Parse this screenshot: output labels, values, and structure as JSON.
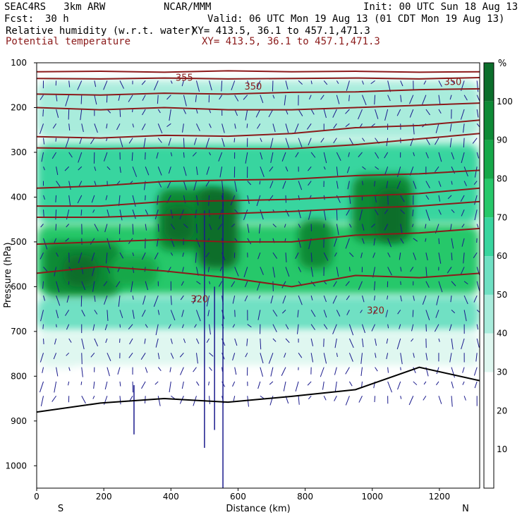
{
  "header": {
    "model": "SEAC4RS   3km ARW",
    "center": "NCAR/MMM",
    "init": "Init: 00 UTC Sun 18 Aug 13",
    "fcst_label": "Fcst:",
    "fcst_value": "30 h",
    "valid": "Valid: 06 UTC Mon 19 Aug 13 (01 CDT Mon 19 Aug 13)",
    "field1": "Relative humidity (w.r.t. water)",
    "field1_xy": "XY= 413.5, 36.1 to 457.1,471.3",
    "field2": "Potential temperature",
    "field2_xy": "XY= 413.5, 36.1 to 457.1,471.3"
  },
  "chart_data": {
    "type": "heatmap",
    "title": "Relative humidity (w.r.t. water)",
    "overlay": "Potential temperature",
    "xlabel": "Distance (km)",
    "ylabel": "Pressure (hPa)",
    "xlim": [
      0,
      1320
    ],
    "ylim": [
      100,
      1050
    ],
    "x_ticks": [
      0,
      200,
      400,
      600,
      800,
      1000,
      1200
    ],
    "y_ticks": [
      100,
      200,
      300,
      400,
      500,
      600,
      700,
      800,
      900,
      1000
    ],
    "x_end_labels": {
      "left": "S",
      "right": "N"
    },
    "colorbar": {
      "unit": "%",
      "levels": [
        10,
        20,
        30,
        40,
        50,
        60,
        70,
        80,
        90,
        100
      ],
      "colors": [
        "#ffffff",
        "#ffffff",
        "#ffffff",
        "#dff7f0",
        "#a9ecdc",
        "#6fe0c3",
        "#39d59f",
        "#27c86a",
        "#16a849",
        "#0e8a36",
        "#0b6e2b"
      ]
    },
    "theta_contour_labels": [
      {
        "text": "355",
        "x": 440,
        "p": 140
      },
      {
        "text": "350",
        "x": 645,
        "p": 160
      },
      {
        "text": "350",
        "x": 1240,
        "p": 150
      },
      {
        "text": "320",
        "x": 485,
        "p": 635
      },
      {
        "text": "320",
        "x": 1010,
        "p": 660
      }
    ],
    "theta_contours": [
      {
        "p": [
          120,
          119,
          121,
          118,
          120,
          119,
          121,
          120
        ]
      },
      {
        "p": [
          135,
          136,
          134,
          136,
          135,
          134,
          136,
          133
        ]
      },
      {
        "p": [
          170,
          172,
          168,
          170,
          166,
          165,
          160,
          158
        ]
      },
      {
        "p": [
          200,
          205,
          200,
          205,
          205,
          200,
          195,
          190
        ]
      },
      {
        "p": [
          265,
          268,
          262,
          264,
          258,
          245,
          240,
          228
        ]
      },
      {
        "p": [
          290,
          292,
          290,
          292,
          292,
          283,
          270,
          258
        ]
      },
      {
        "p": [
          380,
          375,
          365,
          362,
          360,
          352,
          348,
          340
        ]
      },
      {
        "p": [
          420,
          420,
          410,
          408,
          405,
          398,
          392,
          380
        ]
      },
      {
        "p": [
          445,
          445,
          440,
          437,
          432,
          425,
          420,
          410
        ]
      },
      {
        "p": [
          505,
          500,
          495,
          500,
          500,
          485,
          480,
          470
        ]
      },
      {
        "p": [
          570,
          555,
          565,
          580,
          600,
          575,
          580,
          570
        ]
      }
    ],
    "terrain_pressure": [
      880,
      860,
      850,
      858,
      845,
      830,
      780,
      810
    ],
    "terrain_x": [
      0,
      190,
      380,
      570,
      760,
      950,
      1140,
      1320
    ]
  }
}
